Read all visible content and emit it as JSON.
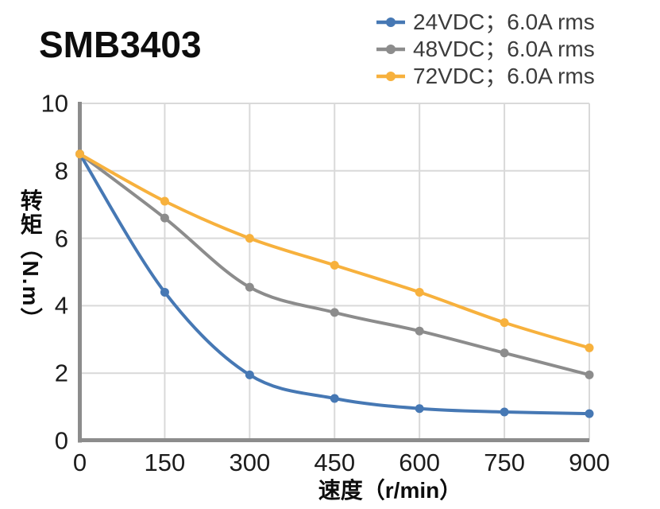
{
  "title": "SMB3403",
  "legend": {
    "position": "top-right",
    "items": [
      {
        "label": "24VDC；6.0A rms",
        "color": "#4678b4"
      },
      {
        "label": "48VDC；6.0A rms",
        "color": "#8c8c8c"
      },
      {
        "label": "72VDC；6.0A rms",
        "color": "#f7b13d"
      }
    ]
  },
  "chart_data": {
    "type": "line",
    "title": "SMB3403",
    "xlabel": "速度（r/min）",
    "ylabel": "转矩（N.m）",
    "x": [
      0,
      150,
      300,
      450,
      600,
      750,
      900
    ],
    "series": [
      {
        "name": "24VDC；6.0A rms",
        "color": "#4678b4",
        "values": [
          8.5,
          4.4,
          1.95,
          1.25,
          0.95,
          0.85,
          0.8
        ]
      },
      {
        "name": "48VDC；6.0A rms",
        "color": "#8c8c8c",
        "values": [
          8.5,
          6.6,
          4.55,
          3.8,
          3.25,
          2.6,
          1.95
        ]
      },
      {
        "name": "72VDC；6.0A rms",
        "color": "#f7b13d",
        "values": [
          8.5,
          7.1,
          6.0,
          5.2,
          4.4,
          3.5,
          2.75
        ]
      }
    ],
    "xticks": [
      0,
      150,
      300,
      450,
      600,
      750,
      900
    ],
    "yticks": [
      0,
      2,
      4,
      6,
      8,
      10
    ],
    "xlim": [
      0,
      900
    ],
    "ylim": [
      0,
      10
    ],
    "grid": true,
    "marker": "circle",
    "colors": {
      "grid": "#d9d9d9",
      "axis": "#8c8c8c",
      "tick_text": "#1c1c1c",
      "legend_text": "#3c3c3c",
      "title_text": "#0d0d0d",
      "background": "#ffffff"
    }
  }
}
